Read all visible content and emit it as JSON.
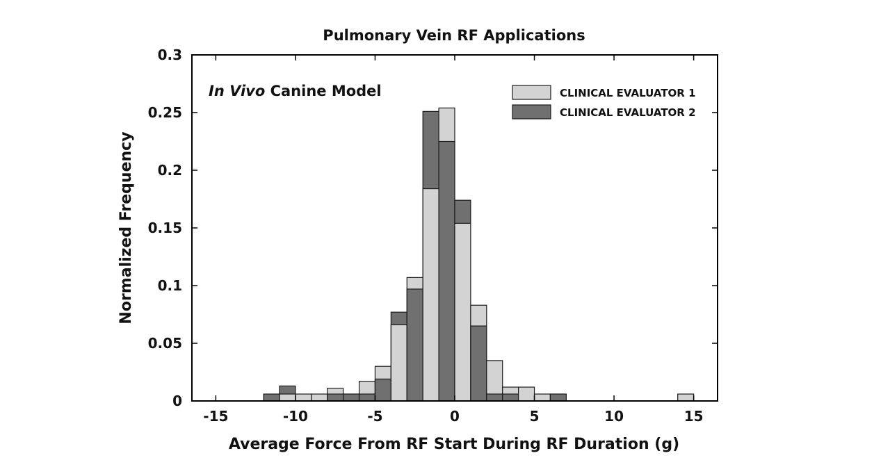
{
  "chart_data": {
    "type": "bar",
    "title": "Pulmonary Vein RF Applications",
    "xlabel": "Average Force From RF Start During RF Duration (g)",
    "ylabel": "Normalized Frequency",
    "annotation_italic": "In Vivo",
    "annotation_rest": " Canine Model",
    "xlim": [
      -16.5,
      16.5
    ],
    "ylim": [
      0,
      0.3
    ],
    "xticks": [
      -15,
      -10,
      -5,
      0,
      5,
      10,
      15
    ],
    "xtick_labels": [
      "-15",
      "-10",
      "-5",
      "0",
      "5",
      "10",
      "15"
    ],
    "yticks": [
      0,
      0.05,
      0.1,
      0.15,
      0.2,
      0.25,
      0.3
    ],
    "ytick_labels": [
      "0",
      "0.05",
      "0.1",
      "0.15",
      "0.2",
      "0.25",
      "0.3"
    ],
    "bin_width": 1,
    "bin_starts": [
      -12,
      -11,
      -10,
      -9,
      -8,
      -7,
      -6,
      -5,
      -4,
      -3,
      -2,
      -1,
      0,
      1,
      2,
      3,
      4,
      5,
      6,
      7,
      14
    ],
    "series": [
      {
        "name": "CLINICAL EVALUATOR 1",
        "color": "#d3d3d3",
        "values": [
          0.0,
          0.006,
          0.006,
          0.006,
          0.011,
          0.006,
          0.017,
          0.03,
          0.066,
          0.107,
          0.184,
          0.254,
          0.154,
          0.083,
          0.035,
          0.012,
          0.012,
          0.006,
          0.006,
          0.0,
          0.006
        ]
      },
      {
        "name": "CLINICAL EVALUATOR 2",
        "color": "#707070",
        "values": [
          0.006,
          0.013,
          0.0,
          0.0,
          0.006,
          0.006,
          0.006,
          0.019,
          0.077,
          0.097,
          0.251,
          0.225,
          0.174,
          0.065,
          0.006,
          0.006,
          0.0,
          0.0,
          0.006,
          0.0,
          0.0
        ]
      }
    ],
    "legend_position": "top-right"
  }
}
